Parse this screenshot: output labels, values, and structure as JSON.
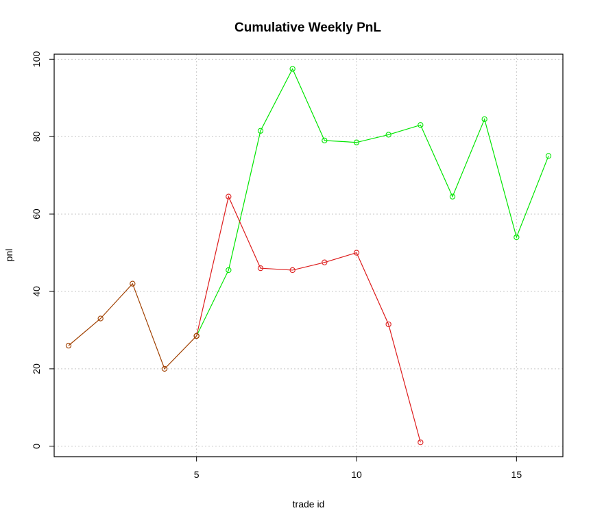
{
  "chart_data": {
    "type": "line",
    "title": "Cumulative Weekly PnL",
    "xlabel": "trade id",
    "ylabel": "pnl",
    "xlim": [
      0.55,
      16.45
    ],
    "ylim": [
      -2.7,
      101.3
    ],
    "xticks": [
      5,
      10,
      15
    ],
    "yticks": [
      0,
      20,
      40,
      60,
      80,
      100
    ],
    "grid": true,
    "series": [
      {
        "color": "#00e600",
        "x": [
          5,
          6,
          7,
          8,
          9,
          10,
          11,
          12,
          13,
          14,
          15,
          16
        ],
        "y": [
          28.5,
          45.5,
          81.5,
          97.5,
          79,
          78.5,
          80.5,
          83,
          64.5,
          84.5,
          54,
          75
        ]
      },
      {
        "color": "#dd1c1c",
        "x": [
          5,
          6,
          7,
          8,
          9,
          10,
          11,
          12
        ],
        "y": [
          28.5,
          64.5,
          46,
          45.5,
          47.5,
          50,
          31.5,
          1
        ]
      },
      {
        "color": "#a04000",
        "x": [
          1,
          2,
          3,
          4,
          5
        ],
        "y": [
          26,
          33,
          42,
          20,
          28.5
        ]
      }
    ]
  }
}
